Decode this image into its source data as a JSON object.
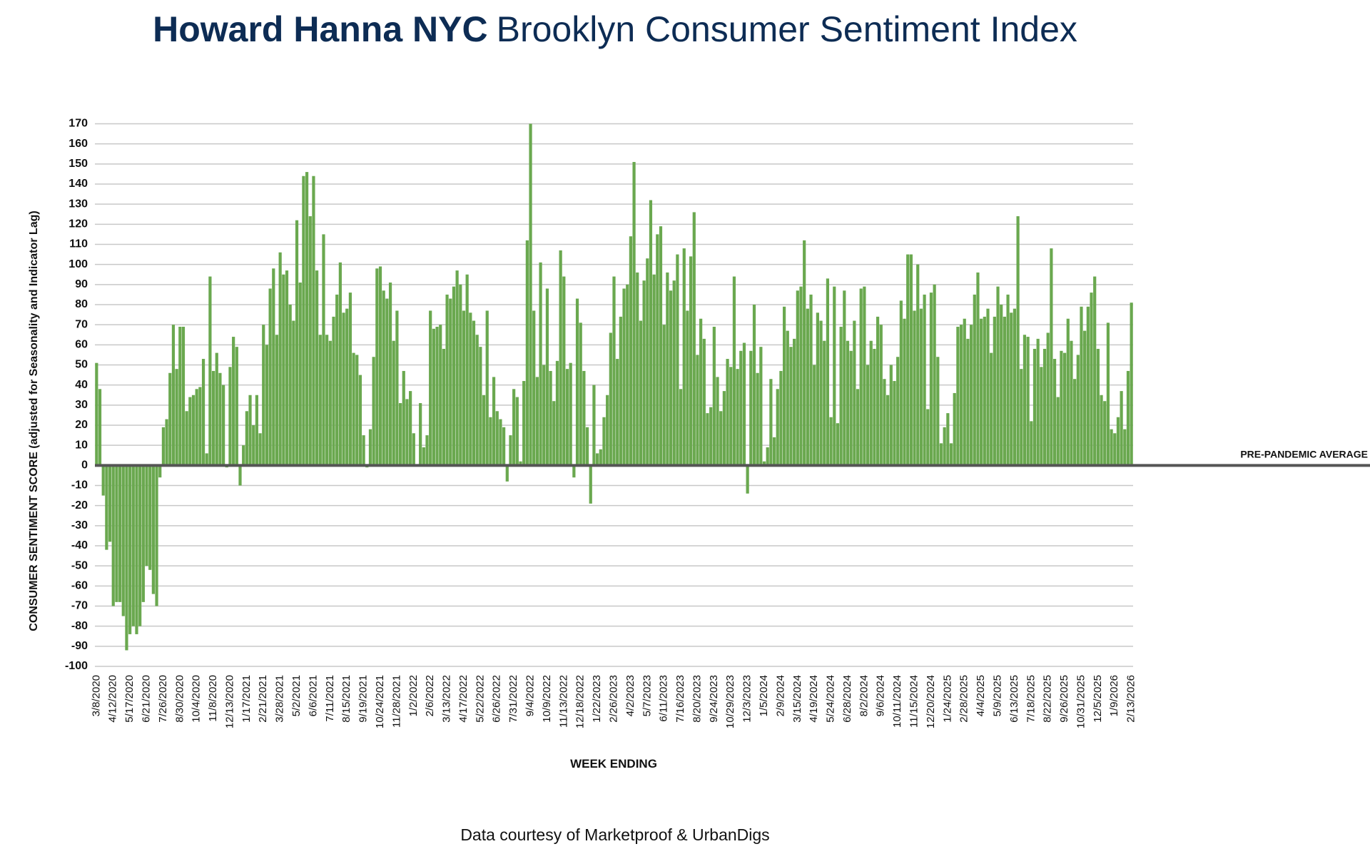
{
  "chart_data": {
    "type": "bar",
    "title": "Howard Hanna NYC",
    "subtitle": "Brooklyn Consumer Sentiment Index",
    "ylabel": "CONSUMER SENTIMENT SCORE (adjusted for Seasonality and Indicator Lag)",
    "xlabel": "WEEK ENDING",
    "source": "Data courtesy of Marketproof & UrbanDigs",
    "reference_line": {
      "value": 0,
      "label": "PRE-PANDEMIC AVERAGE"
    },
    "color": "#6aa84f",
    "grid": true,
    "ylim": [
      -100,
      170
    ],
    "yticks": [
      -100,
      -90,
      -80,
      -70,
      -60,
      -50,
      -40,
      -30,
      -20,
      -10,
      0,
      10,
      20,
      30,
      40,
      50,
      60,
      70,
      80,
      90,
      100,
      110,
      120,
      130,
      140,
      150,
      160,
      170
    ],
    "categories": [
      "3/8/2020",
      null,
      null,
      null,
      null,
      "4/12/2020",
      null,
      null,
      null,
      null,
      "5/17/2020",
      null,
      null,
      null,
      null,
      "6/21/2020",
      null,
      null,
      null,
      null,
      "7/26/2020",
      null,
      null,
      null,
      null,
      "8/30/2020",
      null,
      null,
      null,
      null,
      "10/4/2020",
      null,
      null,
      null,
      null,
      "11/8/2020",
      null,
      null,
      null,
      null,
      "12/13/2020",
      null,
      null,
      null,
      null,
      "1/17/2021",
      null,
      null,
      null,
      null,
      "2/21/2021",
      null,
      null,
      null,
      null,
      "3/28/2021",
      null,
      null,
      null,
      null,
      "5/2/2021",
      null,
      null,
      null,
      null,
      "6/6/2021",
      null,
      null,
      null,
      null,
      "7/11/2021",
      null,
      null,
      null,
      null,
      "8/15/2021",
      null,
      null,
      null,
      null,
      "9/19/2021",
      null,
      null,
      null,
      null,
      "10/24/2021",
      null,
      null,
      null,
      null,
      "11/28/2021",
      null,
      null,
      null,
      null,
      "1/2/2022",
      null,
      null,
      null,
      null,
      "2/6/2022",
      null,
      null,
      null,
      null,
      "3/13/2022",
      null,
      null,
      null,
      null,
      "4/17/2022",
      null,
      null,
      null,
      null,
      "5/22/2022",
      null,
      null,
      null,
      null,
      "6/26/2022",
      null,
      null,
      null,
      null,
      "7/31/2022",
      null,
      null,
      null,
      null,
      "9/4/2022",
      null,
      null,
      null,
      null,
      "10/9/2022",
      null,
      null,
      null,
      null,
      "11/13/2022",
      null,
      null,
      null,
      null,
      "12/18/2022",
      null,
      null,
      null,
      null,
      "1/22/2023",
      null,
      null,
      null,
      null,
      "2/26/2023",
      null,
      null,
      null,
      null,
      "4/2/2023",
      null,
      null,
      null,
      null,
      "5/7/2023",
      null,
      null,
      null,
      null,
      "6/11/2023",
      null,
      null,
      null,
      null,
      "7/16/2023",
      null,
      null,
      null,
      null,
      "8/20/2023",
      null,
      null,
      null,
      null,
      "9/24/2023",
      null,
      null,
      null,
      null,
      "10/29/2023",
      null,
      null,
      null,
      null,
      "12/3/2023",
      null,
      null,
      null,
      null,
      "1/5/2024",
      null,
      null,
      null,
      null,
      "2/9/2024",
      null,
      null,
      null,
      null,
      "3/15/2024",
      null,
      null,
      null,
      null,
      "4/19/2024",
      null,
      null,
      null,
      null,
      "5/24/2024",
      null,
      null,
      null,
      null,
      "6/28/2024",
      null,
      null,
      null,
      null,
      "8/2/2024",
      null,
      null,
      null,
      null,
      "9/6/2024",
      null,
      null,
      null,
      null,
      "10/11/2024",
      null,
      null,
      null,
      null,
      "11/15/2024",
      null,
      null,
      null,
      null,
      "12/20/2024",
      null,
      null,
      null,
      null,
      "1/24/2025",
      null,
      null,
      null,
      null,
      "2/28/2025",
      null,
      null,
      null,
      null,
      "4/4/2025",
      null,
      null,
      null,
      null,
      "5/9/2025",
      null,
      null,
      null,
      null,
      "6/13/2025",
      null,
      null,
      null,
      null,
      "7/18/2025",
      null,
      null,
      null,
      null,
      "8/22/2025",
      null,
      null,
      null,
      null,
      "9/26/2025",
      null,
      null,
      null,
      null,
      "10/31/2025",
      null,
      null,
      null,
      null,
      "12/5/2025",
      null,
      null,
      null,
      null,
      "1/9/2026",
      null,
      null,
      null,
      null,
      "2/13/2026"
    ],
    "values": [
      51,
      38,
      -15,
      -42,
      -38,
      -70,
      -68,
      -68,
      -75,
      -92,
      -84,
      -80,
      -84,
      -80,
      -68,
      -50,
      -52,
      -64,
      -70,
      -6,
      19,
      23,
      46,
      70,
      48,
      69,
      69,
      27,
      34,
      35,
      38,
      39,
      53,
      6,
      94,
      47,
      56,
      46,
      40,
      -1,
      49,
      64,
      59,
      -10,
      10,
      27,
      35,
      20,
      35,
      16,
      70,
      60,
      88,
      98,
      65,
      106,
      95,
      97,
      80,
      72,
      122,
      91,
      144,
      146,
      124,
      144,
      97,
      65,
      115,
      65,
      62,
      74,
      85,
      101,
      76,
      78,
      86,
      56,
      55,
      45,
      15,
      -1,
      18,
      54,
      98,
      99,
      87,
      83,
      91,
      62,
      77,
      31,
      47,
      33,
      37,
      16,
      0,
      31,
      9,
      15,
      77,
      68,
      69,
      70,
      58,
      85,
      83,
      89,
      97,
      90,
      77,
      95,
      76,
      72,
      65,
      59,
      35,
      77,
      24,
      44,
      27,
      23,
      19,
      -8,
      15,
      38,
      34,
      2,
      42,
      112,
      170,
      77,
      44,
      101,
      50,
      88,
      47,
      32,
      52,
      107,
      94,
      48,
      51,
      -6,
      83,
      71,
      47,
      19,
      -19,
      40,
      6,
      8,
      24,
      35,
      66,
      94,
      53,
      74,
      88,
      90,
      114,
      151,
      96,
      72,
      92,
      103,
      132,
      95,
      115,
      119,
      70,
      96,
      87,
      92,
      105,
      38,
      108,
      77,
      104,
      126,
      55,
      73,
      63,
      26,
      29,
      69,
      44,
      27,
      37,
      53,
      49,
      94,
      48,
      57,
      61,
      -14,
      57,
      80,
      46,
      59,
      2,
      9,
      43,
      14,
      38,
      47,
      79,
      67,
      59,
      63,
      87,
      89,
      112,
      78,
      85,
      50,
      76,
      72,
      62,
      93,
      24,
      89,
      21,
      69,
      87,
      62,
      57,
      72,
      38,
      88,
      89,
      50,
      62,
      58,
      74,
      70,
      43,
      35,
      50,
      42,
      54,
      82,
      73,
      105,
      105,
      77,
      100,
      78,
      85,
      28,
      86,
      90,
      54,
      11,
      19,
      26,
      11,
      36,
      69,
      70,
      73,
      63,
      70,
      85,
      96,
      73,
      74,
      78,
      56,
      74,
      89,
      80,
      74,
      85,
      76,
      78,
      124,
      48,
      65,
      64,
      22,
      58,
      63,
      49,
      58,
      66,
      108,
      53,
      34,
      57,
      56,
      73,
      62,
      43,
      55,
      79,
      67,
      79,
      86,
      94,
      58,
      35,
      32,
      71,
      18,
      16,
      24,
      37,
      18,
      47,
      81
    ]
  }
}
